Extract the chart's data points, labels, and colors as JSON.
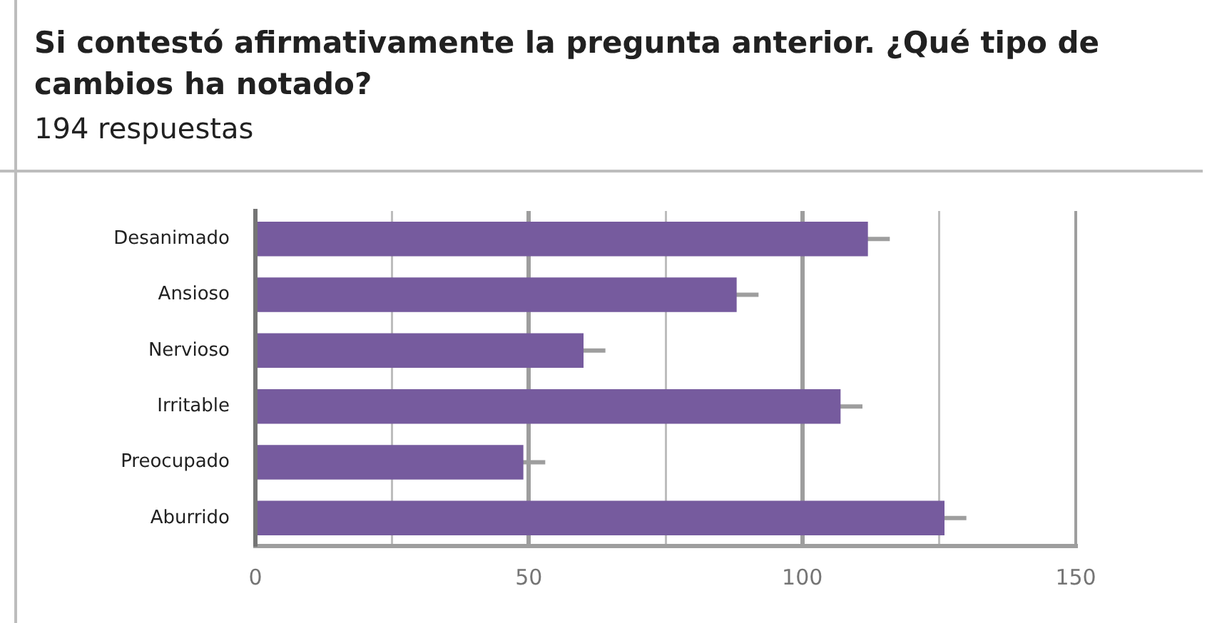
{
  "chart_data": {
    "type": "bar",
    "orientation": "horizontal",
    "title": "Si contestó afirmativamente la pregunta anterior. ¿Qué tipo de cambios ha notado?",
    "subtitle": "194 respuestas",
    "categories": [
      "Desanimado",
      "Ansioso",
      "Nervioso",
      "Irritable",
      "Preocupado",
      "Aburrido"
    ],
    "values": [
      112,
      88,
      60,
      107,
      49,
      126
    ],
    "errors": [
      4,
      4,
      4,
      4,
      4,
      4
    ],
    "color": "#765b9e",
    "xlim": [
      0,
      150
    ],
    "xticks": [
      0,
      {
        "value": 25,
        "label": null
      },
      50,
      {
        "value": 75,
        "label": null
      },
      100,
      {
        "value": 125,
        "label": null
      },
      150
    ],
    "grid": "x"
  }
}
